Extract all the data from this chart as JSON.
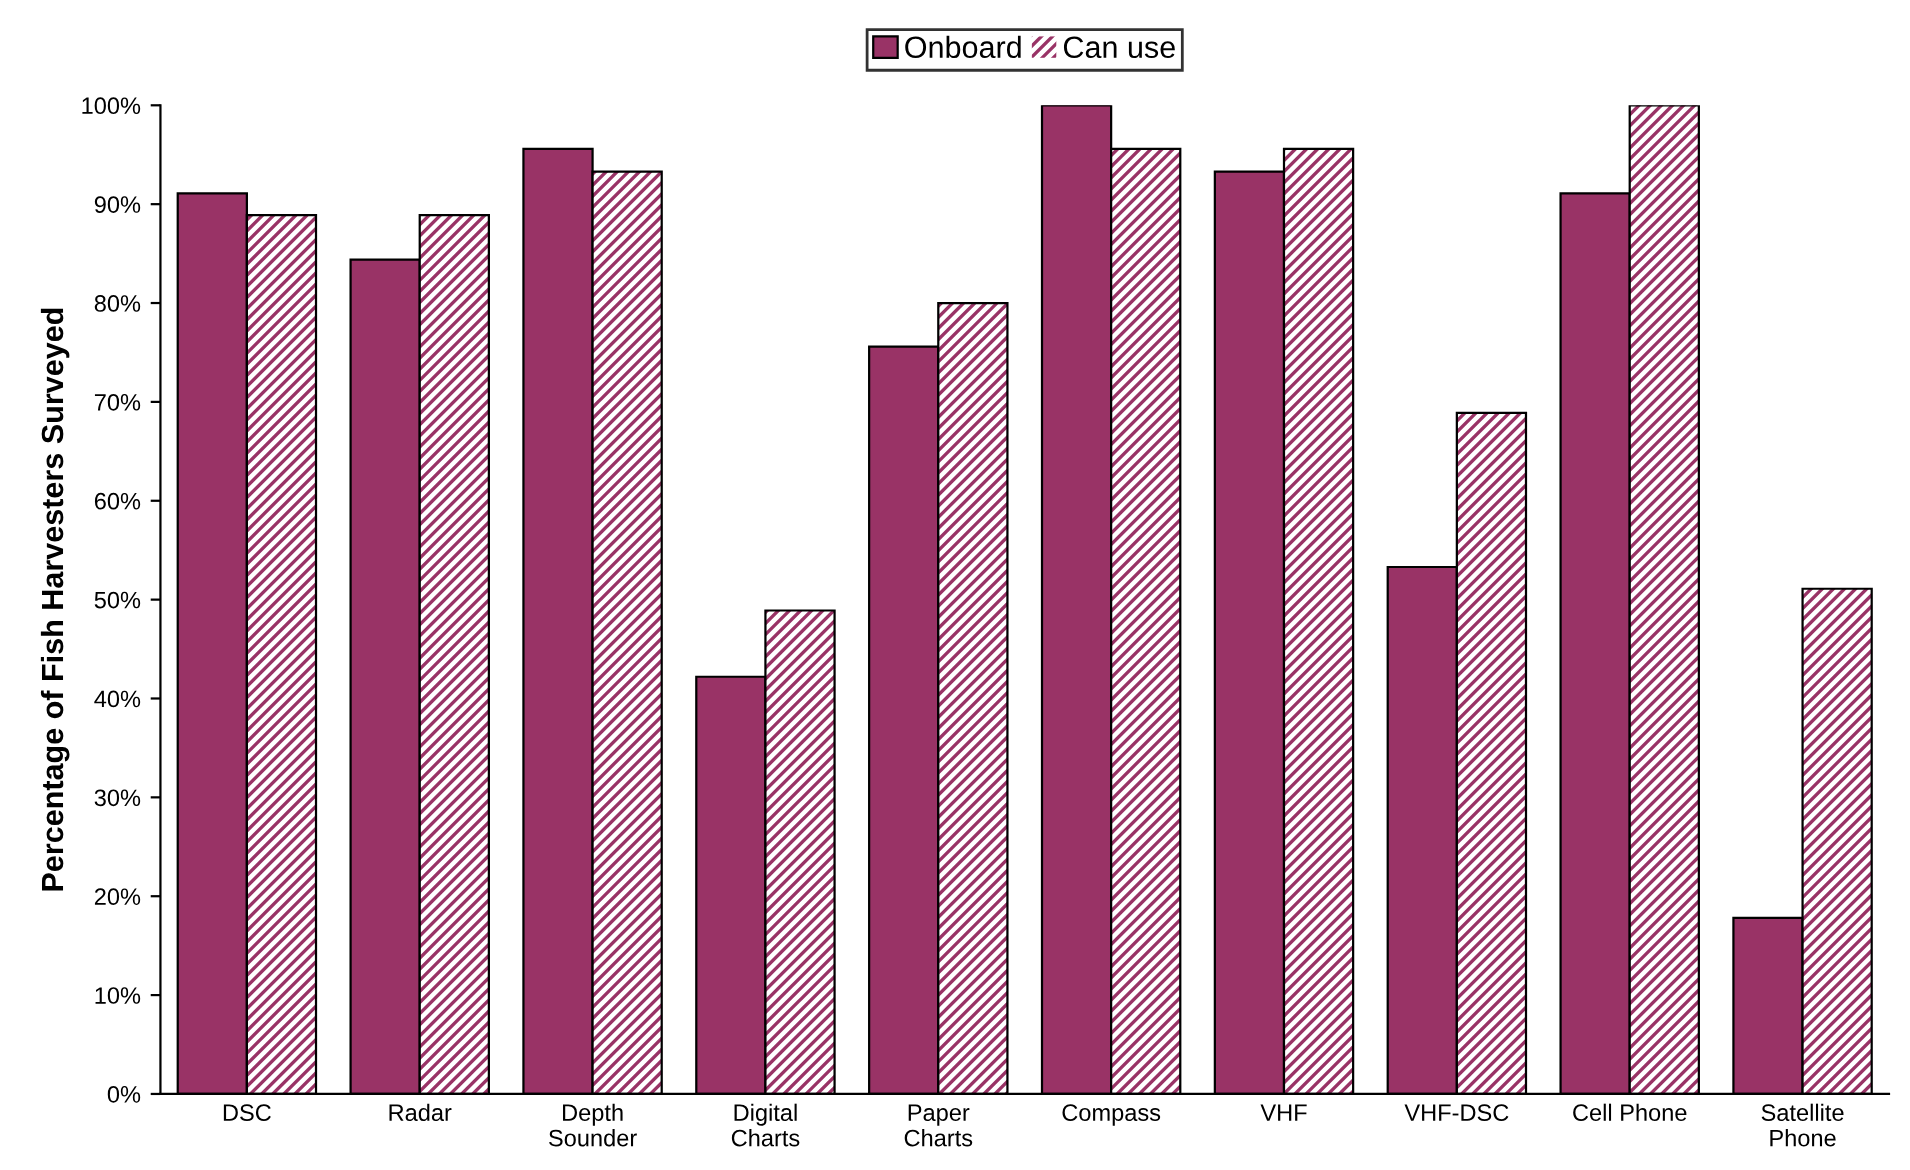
{
  "chart_data": {
    "type": "bar",
    "ylabel": "Percentage of Fish Harvesters Surveyed",
    "categories": [
      "DSC",
      "Radar",
      "Depth\nSounder",
      "Digital\nCharts",
      "Paper\nCharts",
      "Compass",
      "VHF",
      "VHF-DSC",
      "Cell Phone",
      "Satellite\nPhone"
    ],
    "series": [
      {
        "name": "Onboard",
        "color": "#993366",
        "values": [
          91.1,
          84.4,
          95.6,
          42.2,
          75.6,
          100,
          93.3,
          53.3,
          91.1,
          17.8
        ]
      },
      {
        "name": "Can use",
        "color": "#993366",
        "values": [
          88.9,
          88.9,
          93.3,
          48.9,
          80,
          95.6,
          95.6,
          68.9,
          100,
          51.1
        ]
      }
    ],
    "ylim": [
      0,
      100
    ],
    "yticks": [
      {
        "value": 0,
        "label": "0%"
      },
      {
        "value": 10,
        "label": "10%"
      },
      {
        "value": 20,
        "label": "20%"
      },
      {
        "value": 30,
        "label": "30%"
      },
      {
        "value": 40,
        "label": "40%"
      },
      {
        "value": 50,
        "label": "50%"
      },
      {
        "value": 60,
        "label": "60%"
      },
      {
        "value": 70,
        "label": "70%"
      },
      {
        "value": 80,
        "label": "80%"
      },
      {
        "value": 90,
        "label": "90%"
      },
      {
        "value": 100,
        "label": "100%"
      }
    ],
    "legend": "top",
    "grid": false
  }
}
